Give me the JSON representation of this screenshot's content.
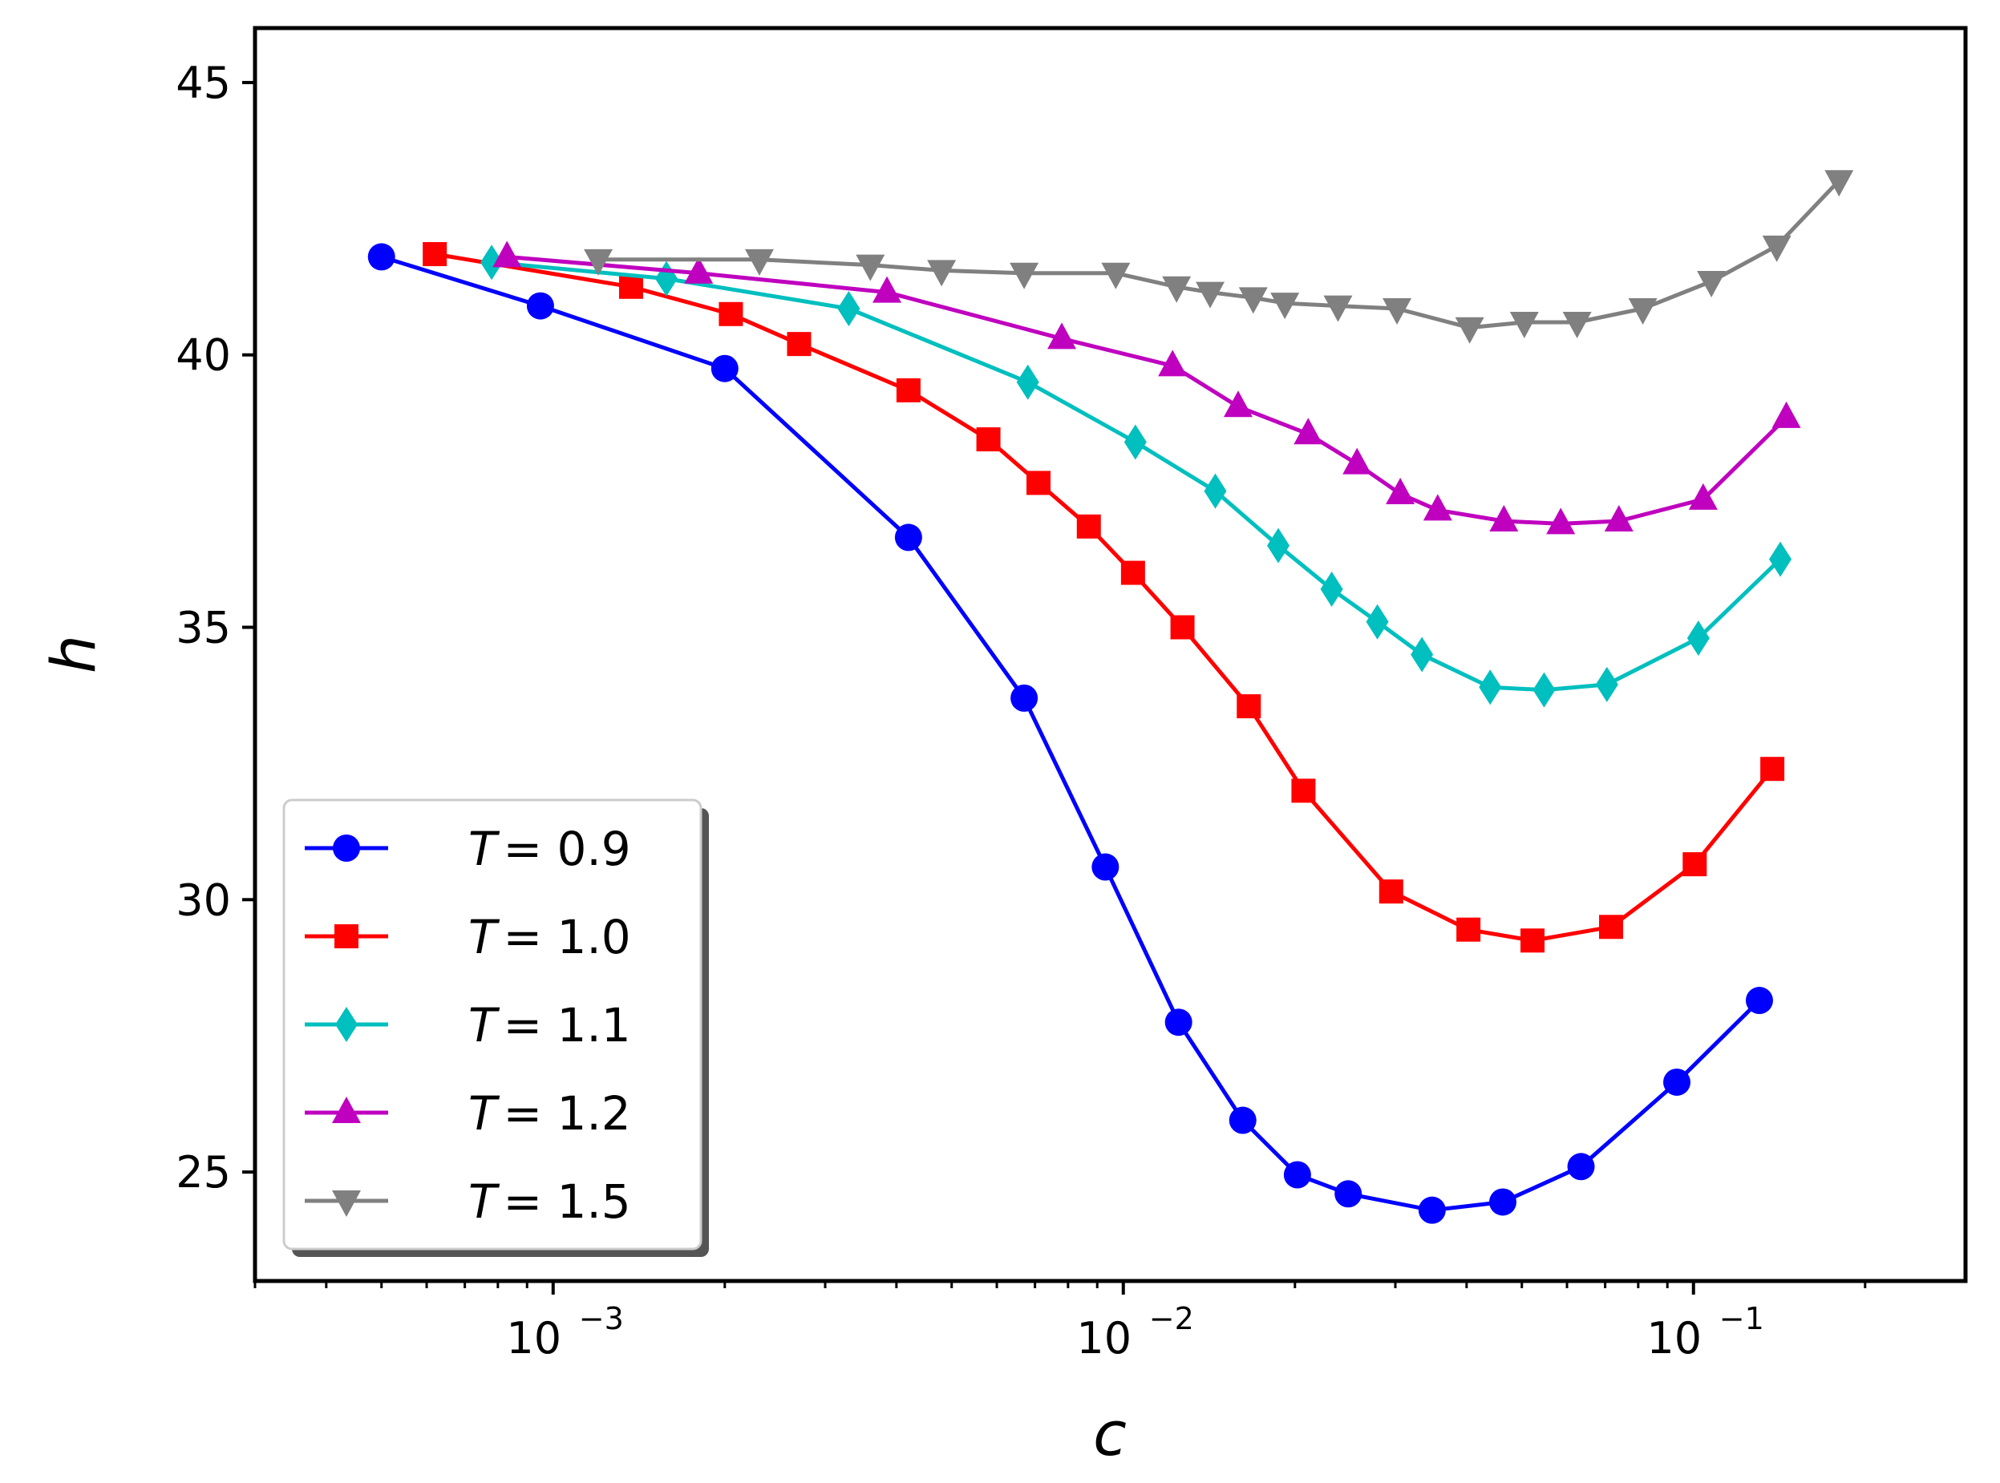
{
  "chart_data": {
    "type": "line",
    "title": "",
    "xlabel": "c",
    "ylabel": "h",
    "xscale": "log",
    "xlim": [
      0.0003,
      0.3
    ],
    "ylim": [
      23,
      46
    ],
    "grid": false,
    "legend_position": "bottom-left",
    "y_ticks": [
      25,
      30,
      35,
      40,
      45
    ],
    "y_tick_labels": [
      "25",
      "30",
      "35",
      "40",
      "45"
    ],
    "x_major_ticks": [
      0.001,
      0.01,
      0.1
    ],
    "x_tick_labels": [
      {
        "base": "10",
        "exp": "−3"
      },
      {
        "base": "10",
        "exp": "−2"
      },
      {
        "base": "10",
        "exp": "−1"
      }
    ],
    "series": [
      {
        "name": "T = 0.9",
        "legend_var": "T",
        "legend_val": "0.9",
        "color": "#0000ff",
        "marker": "circle",
        "x": [
          0.0005,
          0.00095,
          0.002,
          0.0042,
          0.0067,
          0.0093,
          0.0125,
          0.0162,
          0.0202,
          0.0248,
          0.0348,
          0.0463,
          0.0635,
          0.0935,
          0.1305
        ],
        "y": [
          41.8,
          40.9,
          39.75,
          36.65,
          33.7,
          30.6,
          27.75,
          25.95,
          24.95,
          24.6,
          24.3,
          24.45,
          25.1,
          26.65,
          28.15
        ]
      },
      {
        "name": "T = 1.0",
        "legend_var": "T",
        "legend_val": "1.0",
        "color": "#ff0000",
        "marker": "square",
        "x": [
          0.00062,
          0.00137,
          0.00205,
          0.0027,
          0.0042,
          0.0058,
          0.0071,
          0.0087,
          0.0104,
          0.0127,
          0.0166,
          0.0207,
          0.0295,
          0.0403,
          0.0522,
          0.0717,
          0.1005,
          0.1375
        ],
        "y": [
          41.85,
          41.25,
          40.75,
          40.2,
          39.35,
          38.45,
          37.65,
          36.85,
          36.0,
          35.0,
          33.55,
          32.0,
          30.15,
          29.45,
          29.25,
          29.5,
          30.65,
          32.4
        ],
        "legend_marker": "square"
      },
      {
        "name": "T = 1.1",
        "legend_var": "T",
        "legend_val": "1.1",
        "color": "#00bfbf",
        "marker": "diamond",
        "x": [
          0.00078,
          0.00158,
          0.0033,
          0.0068,
          0.0105,
          0.0145,
          0.0187,
          0.0232,
          0.0279,
          0.0334,
          0.044,
          0.0547,
          0.0705,
          0.102,
          0.142
        ],
        "y": [
          41.7,
          41.4,
          40.85,
          39.5,
          38.4,
          37.5,
          36.5,
          35.7,
          35.1,
          34.5,
          33.9,
          33.85,
          33.95,
          34.8,
          36.25
        ]
      },
      {
        "name": "T = 1.2",
        "legend_var": "T",
        "legend_val": "1.2",
        "color": "#bf00bf",
        "marker": "triangle-up",
        "x": [
          0.00083,
          0.0018,
          0.00385,
          0.0078,
          0.0122,
          0.0159,
          0.0211,
          0.0257,
          0.0306,
          0.0356,
          0.0465,
          0.0585,
          0.074,
          0.104,
          0.1455
        ],
        "y": [
          41.8,
          41.5,
          41.15,
          40.3,
          39.8,
          39.05,
          38.55,
          38.0,
          37.45,
          37.15,
          36.95,
          36.9,
          36.95,
          37.35,
          38.85
        ]
      },
      {
        "name": "T = 1.5",
        "legend_var": "T",
        "legend_val": "1.5",
        "color": "#808080",
        "marker": "triangle-down",
        "x": [
          0.0012,
          0.0023,
          0.0036,
          0.0048,
          0.0067,
          0.0097,
          0.0124,
          0.0142,
          0.0169,
          0.0192,
          0.0238,
          0.0302,
          0.0405,
          0.0505,
          0.0625,
          0.0815,
          0.1075,
          0.14,
          0.18
        ],
        "y": [
          41.75,
          41.75,
          41.65,
          41.55,
          41.5,
          41.5,
          41.25,
          41.15,
          41.05,
          40.95,
          40.9,
          40.85,
          40.5,
          40.6,
          40.6,
          40.85,
          41.35,
          42.0,
          43.2
        ]
      }
    ]
  }
}
